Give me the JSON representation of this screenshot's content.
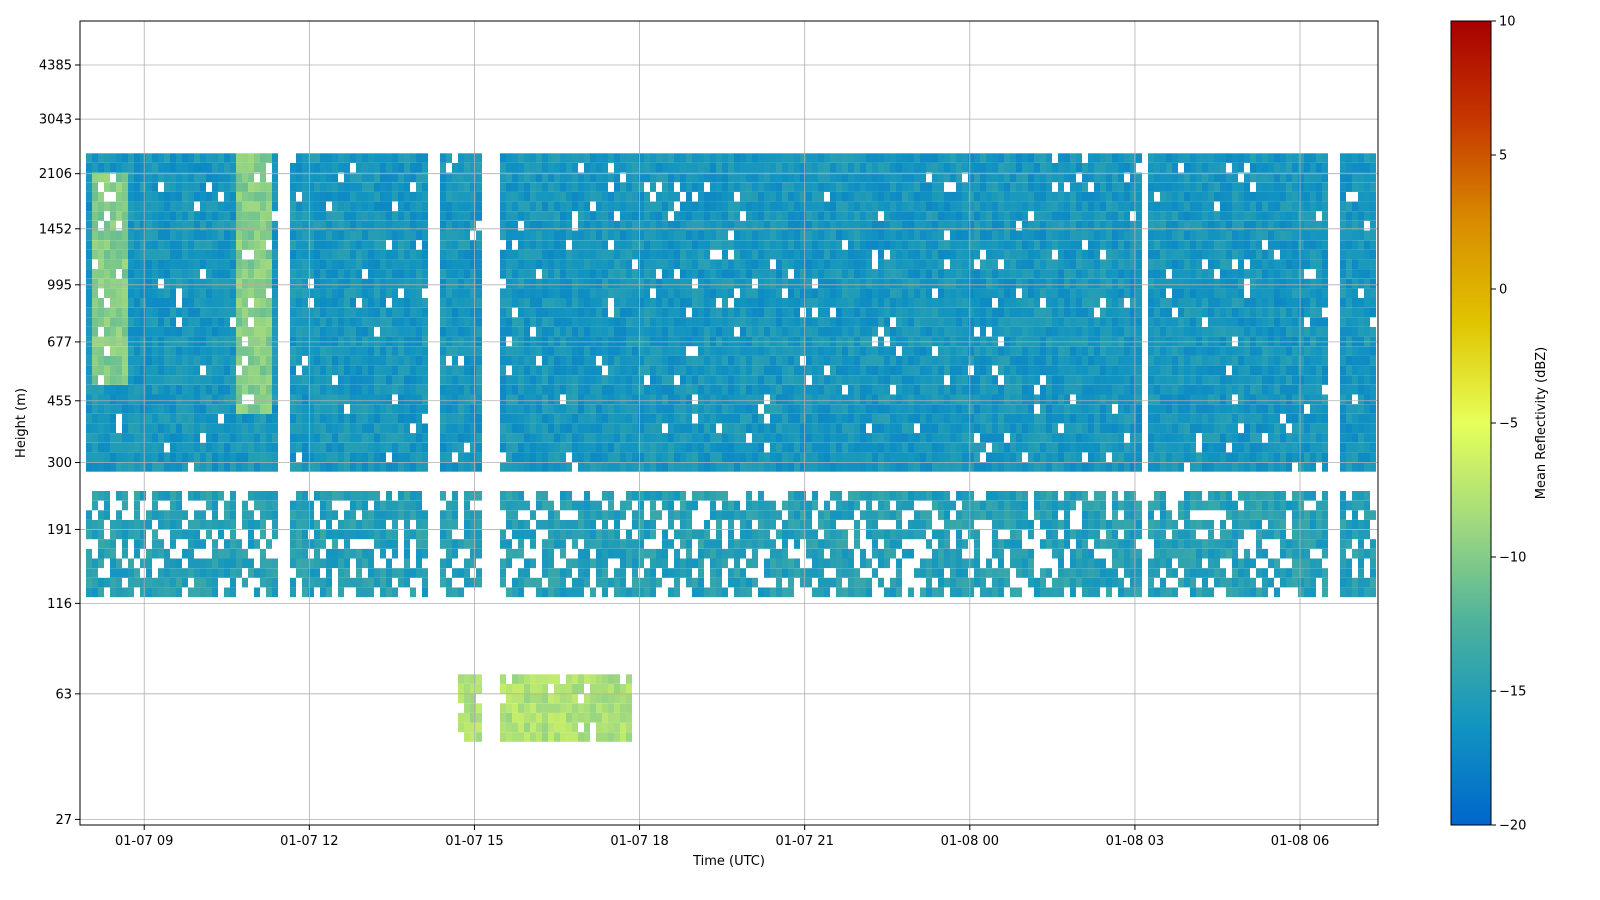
{
  "chart_data": {
    "type": "heatmap",
    "xlabel": "Time (UTC)",
    "ylabel": "Height (m)",
    "y_scale": "log",
    "grid": true,
    "x_range": [
      "01-07 07:50",
      "01-08 07:25"
    ],
    "y_range": [
      26,
      5900
    ],
    "x_ticks": [
      "01-07 09",
      "01-07 12",
      "01-07 15",
      "01-07 18",
      "01-07 21",
      "01-08 00",
      "01-08 03",
      "01-08 06"
    ],
    "y_ticks": [
      27,
      63,
      116,
      191,
      300,
      455,
      677,
      995,
      1452,
      2106,
      3043,
      4385
    ],
    "colorbar": {
      "label": "Mean Reflectivity (dBZ)",
      "min": -20,
      "max": 10,
      "ticks": [
        -20,
        -15,
        -10,
        -5,
        0,
        5,
        10
      ],
      "colormap": [
        "#0066cc",
        "#1295c1",
        "#4cb19c",
        "#a0d97e",
        "#e6ff5a",
        "#e0c400",
        "#d98c00",
        "#c63900",
        "#a80000"
      ]
    },
    "echo_regions": [
      {
        "desc": "main upper echo",
        "start": "01-07 07:55",
        "end": "01-08 07:20",
        "height_bottom": 270,
        "height_top": 2300,
        "dbz": -16
      },
      {
        "desc": "lower echo band",
        "start": "01-07 07:55",
        "end": "01-08 07:20",
        "height_bottom": 120,
        "height_top": 240,
        "dbz": -15
      },
      {
        "desc": "near-surface enhanced echo",
        "start": "01-07 14:40",
        "end": "01-07 17:50",
        "height_bottom": 45,
        "height_top": 70,
        "dbz": -8
      },
      {
        "desc": "enhanced upper echo early",
        "start": "01-07 08:00",
        "end": "01-07 08:40",
        "height_bottom": 500,
        "height_top": 2100,
        "dbz": -10
      },
      {
        "desc": "enhanced upper echo fall streak",
        "start": "01-07 10:40",
        "end": "01-07 11:20",
        "height_bottom": 400,
        "height_top": 2400,
        "dbz": -10
      }
    ],
    "data_gaps": [
      {
        "start": "01-07 11:25",
        "end": "01-07 11:40"
      },
      {
        "start": "01-07 14:10",
        "end": "01-07 14:20"
      },
      {
        "start": "01-07 15:10",
        "end": "01-07 15:30"
      },
      {
        "start": "01-08 03:05",
        "end": "01-08 03:15"
      },
      {
        "start": "01-08 06:30",
        "end": "01-08 06:45"
      }
    ]
  }
}
